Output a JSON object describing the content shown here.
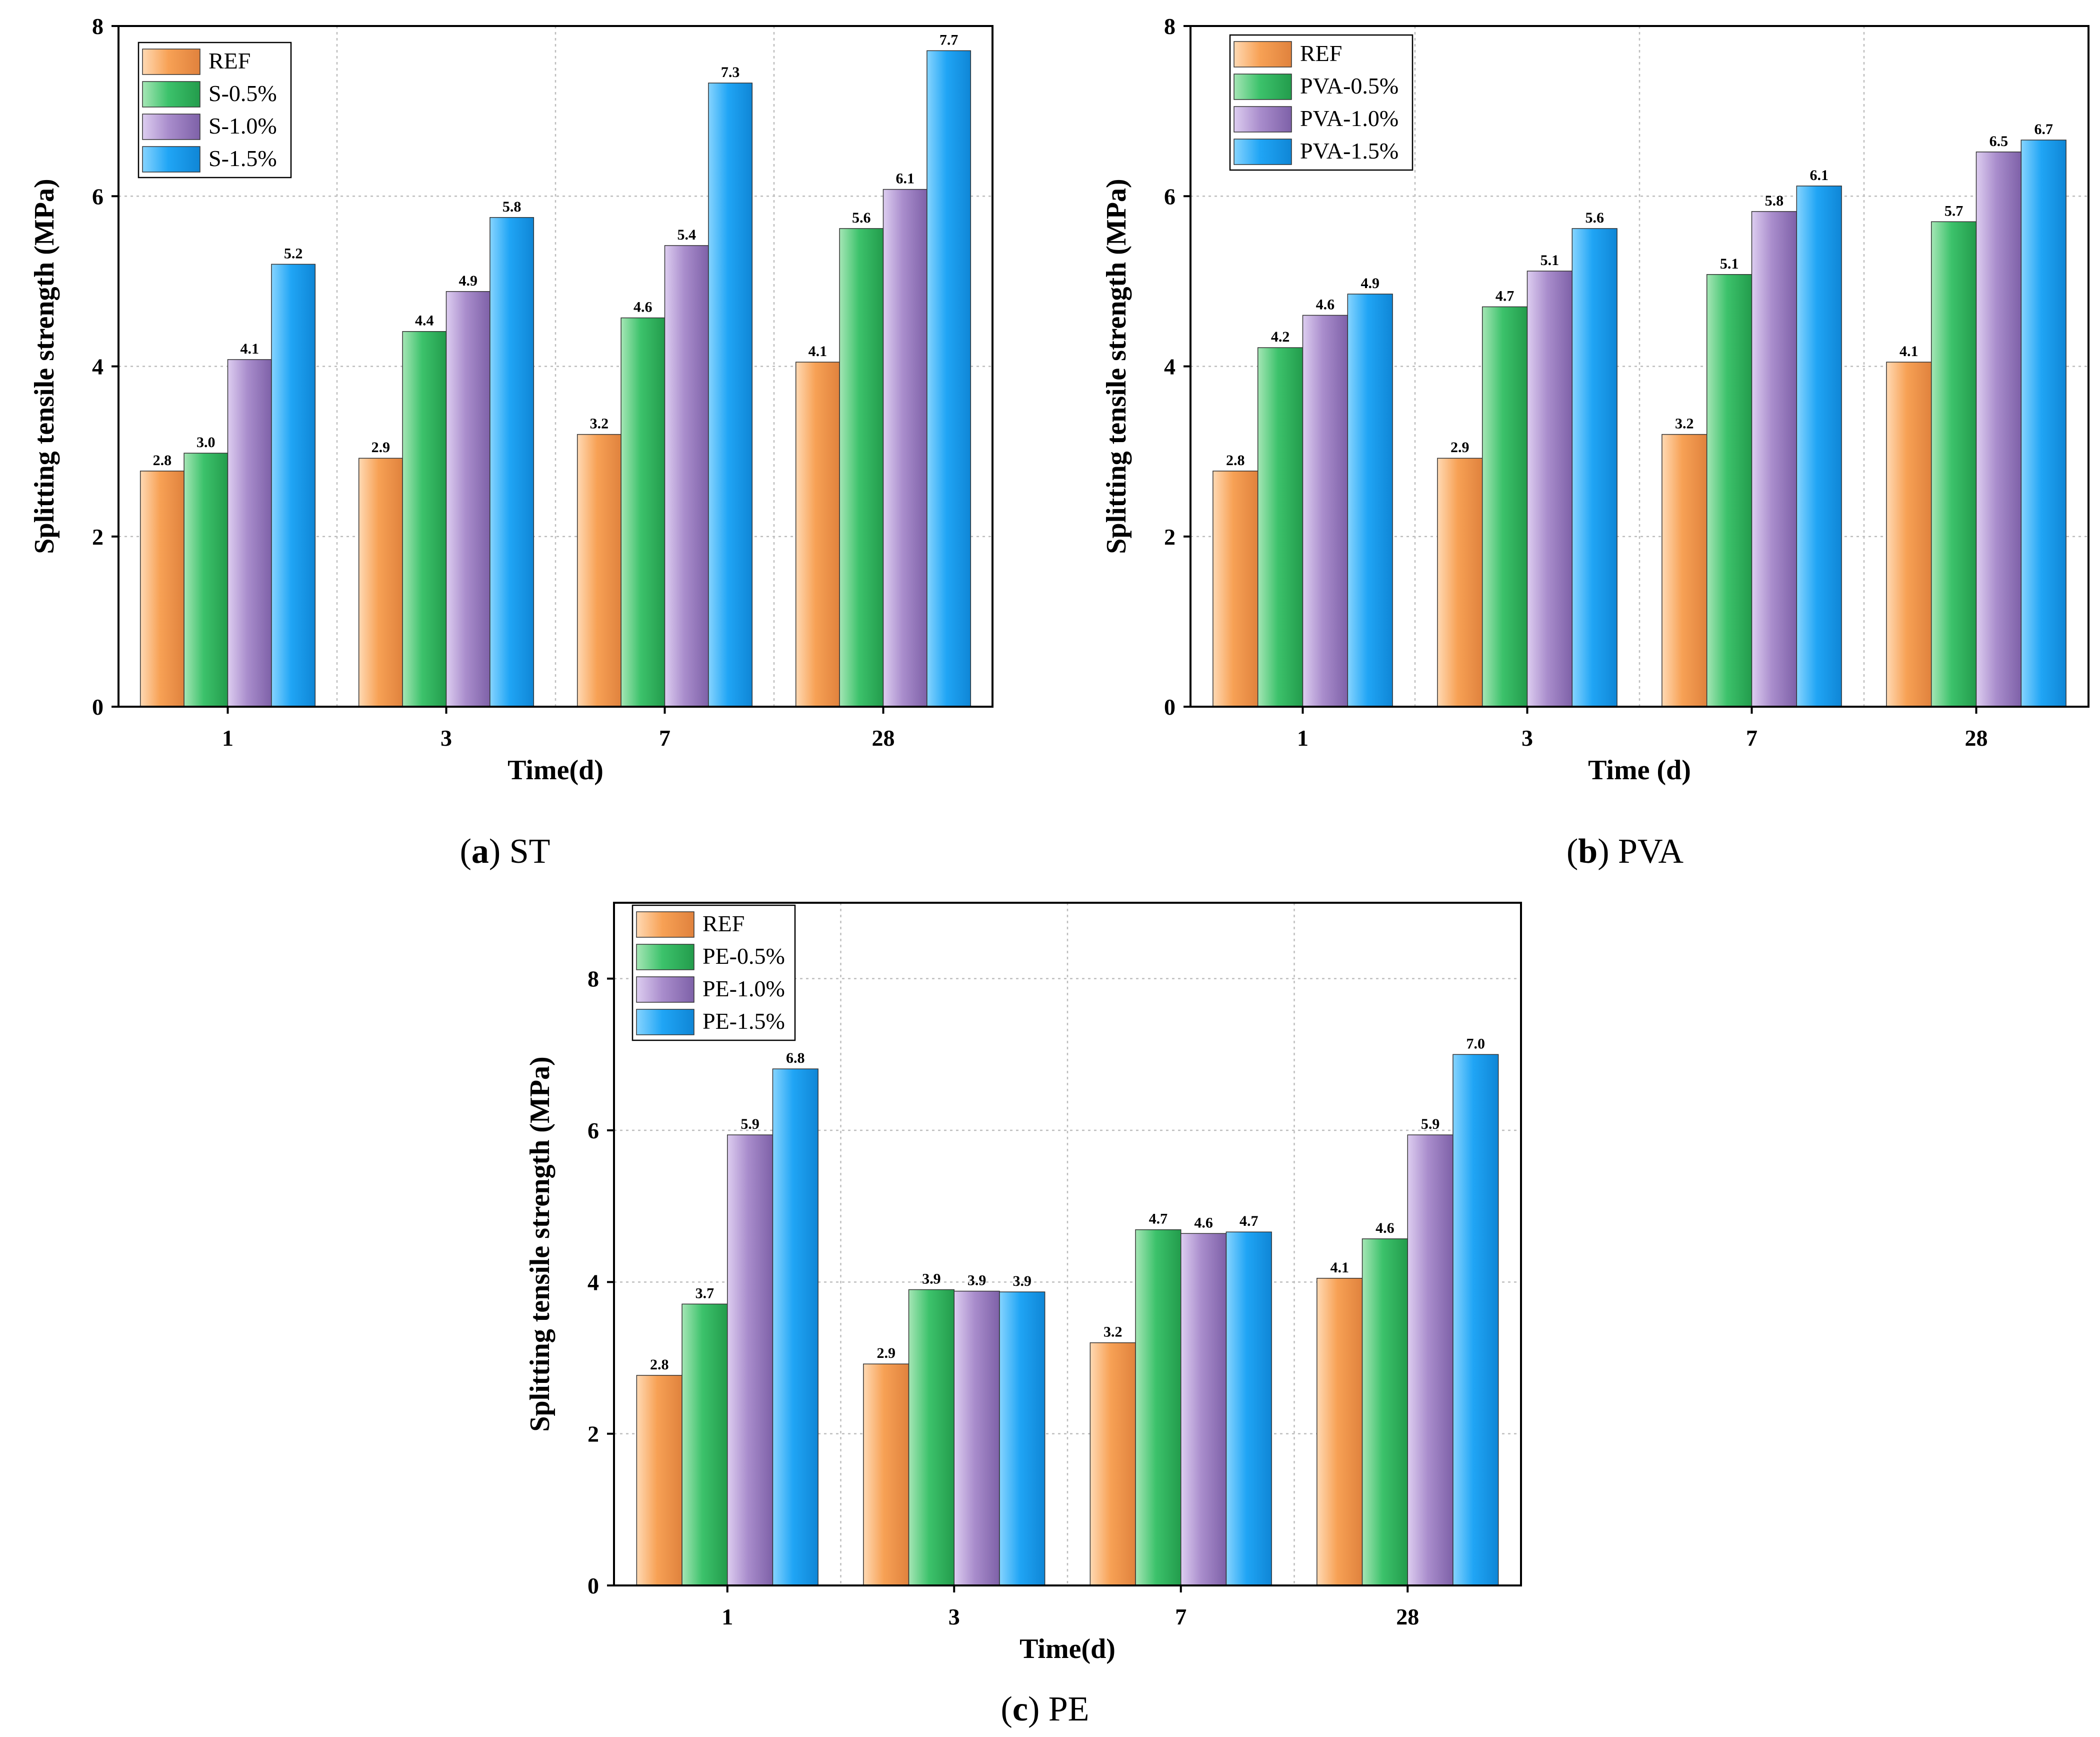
{
  "colors": {
    "REF": [
      "#ffd9b3",
      "#f7a155",
      "#e0823d"
    ],
    "S05": [
      "#a5e6b5",
      "#3cc26b",
      "#239c4c"
    ],
    "S10": [
      "#ddcdf0",
      "#a98dcc",
      "#7e61a8"
    ],
    "S15": [
      "#86d4ff",
      "#20a5f5",
      "#0f86d6"
    ]
  },
  "chart_data": [
    {
      "id": "a",
      "type": "bar",
      "caption": {
        "letter": "a",
        "open": "(",
        "close": ")",
        "text": " ST"
      },
      "xlabel": "Time(d)",
      "ylabel": "Splitting tensile strength  (MPa)",
      "ylim": [
        0,
        8
      ],
      "yticks": [
        "0",
        "2",
        "4",
        "6",
        "8"
      ],
      "categories": [
        "1",
        "3",
        "7",
        "28"
      ],
      "legend_position": "top-left",
      "series": [
        {
          "name": "REF",
          "values": [
            2.77,
            2.92,
            3.2,
            4.05
          ],
          "labels": [
            "2.8",
            "2.9",
            "3.2",
            "4.1"
          ],
          "color_key": "REF"
        },
        {
          "name": "S-0.5%",
          "values": [
            2.98,
            4.41,
            4.57,
            5.62
          ],
          "labels": [
            "3.0",
            "4.4",
            "4.6",
            "5.6"
          ],
          "color_key": "S05"
        },
        {
          "name": "S-1.0%",
          "values": [
            4.08,
            4.88,
            5.42,
            6.08
          ],
          "labels": [
            "4.1",
            "4.9",
            "5.4",
            "6.1"
          ],
          "color_key": "S10"
        },
        {
          "name": "S-1.5%",
          "values": [
            5.2,
            5.75,
            7.33,
            7.71
          ],
          "labels": [
            "5.2",
            "5.8",
            "7.3",
            "7.7"
          ],
          "color_key": "S15"
        }
      ]
    },
    {
      "id": "b",
      "type": "bar",
      "caption": {
        "letter": "b",
        "open": "(",
        "close": ")",
        "text": " PVA"
      },
      "xlabel": "Time (d)",
      "ylabel": "Splitting tensile strength  (MPa)",
      "ylim": [
        0,
        8
      ],
      "yticks": [
        "0",
        "2",
        "4",
        "6",
        "8"
      ],
      "categories": [
        "1",
        "3",
        "7",
        "28"
      ],
      "legend_position": "top-left",
      "series": [
        {
          "name": "REF",
          "values": [
            2.77,
            2.92,
            3.2,
            4.05
          ],
          "labels": [
            "2.8",
            "2.9",
            "3.2",
            "4.1"
          ],
          "color_key": "REF"
        },
        {
          "name": "PVA-0.5%",
          "values": [
            4.22,
            4.7,
            5.08,
            5.7
          ],
          "labels": [
            "4.2",
            "4.7",
            "5.1",
            "5.7"
          ],
          "color_key": "S05"
        },
        {
          "name": "PVA-1.0%",
          "values": [
            4.6,
            5.12,
            5.82,
            6.52
          ],
          "labels": [
            "4.6",
            "5.1",
            "5.8",
            "6.5"
          ],
          "color_key": "S10"
        },
        {
          "name": "PVA-1.5%",
          "values": [
            4.85,
            5.62,
            6.12,
            6.66
          ],
          "labels": [
            "4.9",
            "5.6",
            "6.1",
            "6.7"
          ],
          "color_key": "S15"
        }
      ]
    },
    {
      "id": "c",
      "type": "bar",
      "caption": {
        "letter": "c",
        "open": "(",
        "close": ")",
        "text": " PE"
      },
      "xlabel": "Time(d)",
      "ylabel": "Splitting tensile strength  (MPa)",
      "ylim": [
        0,
        9
      ],
      "yticks": [
        "0",
        "2",
        "4",
        "6",
        "8"
      ],
      "categories": [
        "1",
        "3",
        "7",
        "28"
      ],
      "legend_position": "top-left",
      "series": [
        {
          "name": "REF",
          "values": [
            2.77,
            2.92,
            3.2,
            4.05
          ],
          "labels": [
            "2.8",
            "2.9",
            "3.2",
            "4.1"
          ],
          "color_key": "REF"
        },
        {
          "name": "PE-0.5%",
          "values": [
            3.71,
            3.9,
            4.69,
            4.57
          ],
          "labels": [
            "3.7",
            "3.9",
            "4.7",
            "4.6"
          ],
          "color_key": "S05"
        },
        {
          "name": "PE-1.0%",
          "values": [
            5.94,
            3.88,
            4.64,
            5.94
          ],
          "labels": [
            "5.9",
            "3.9",
            "4.6",
            "5.9"
          ],
          "color_key": "S10"
        },
        {
          "name": "PE-1.5%",
          "values": [
            6.81,
            3.87,
            4.66,
            7.0
          ],
          "labels": [
            "6.8",
            "3.9",
            "4.7",
            "7.0"
          ],
          "color_key": "S15"
        }
      ]
    }
  ]
}
